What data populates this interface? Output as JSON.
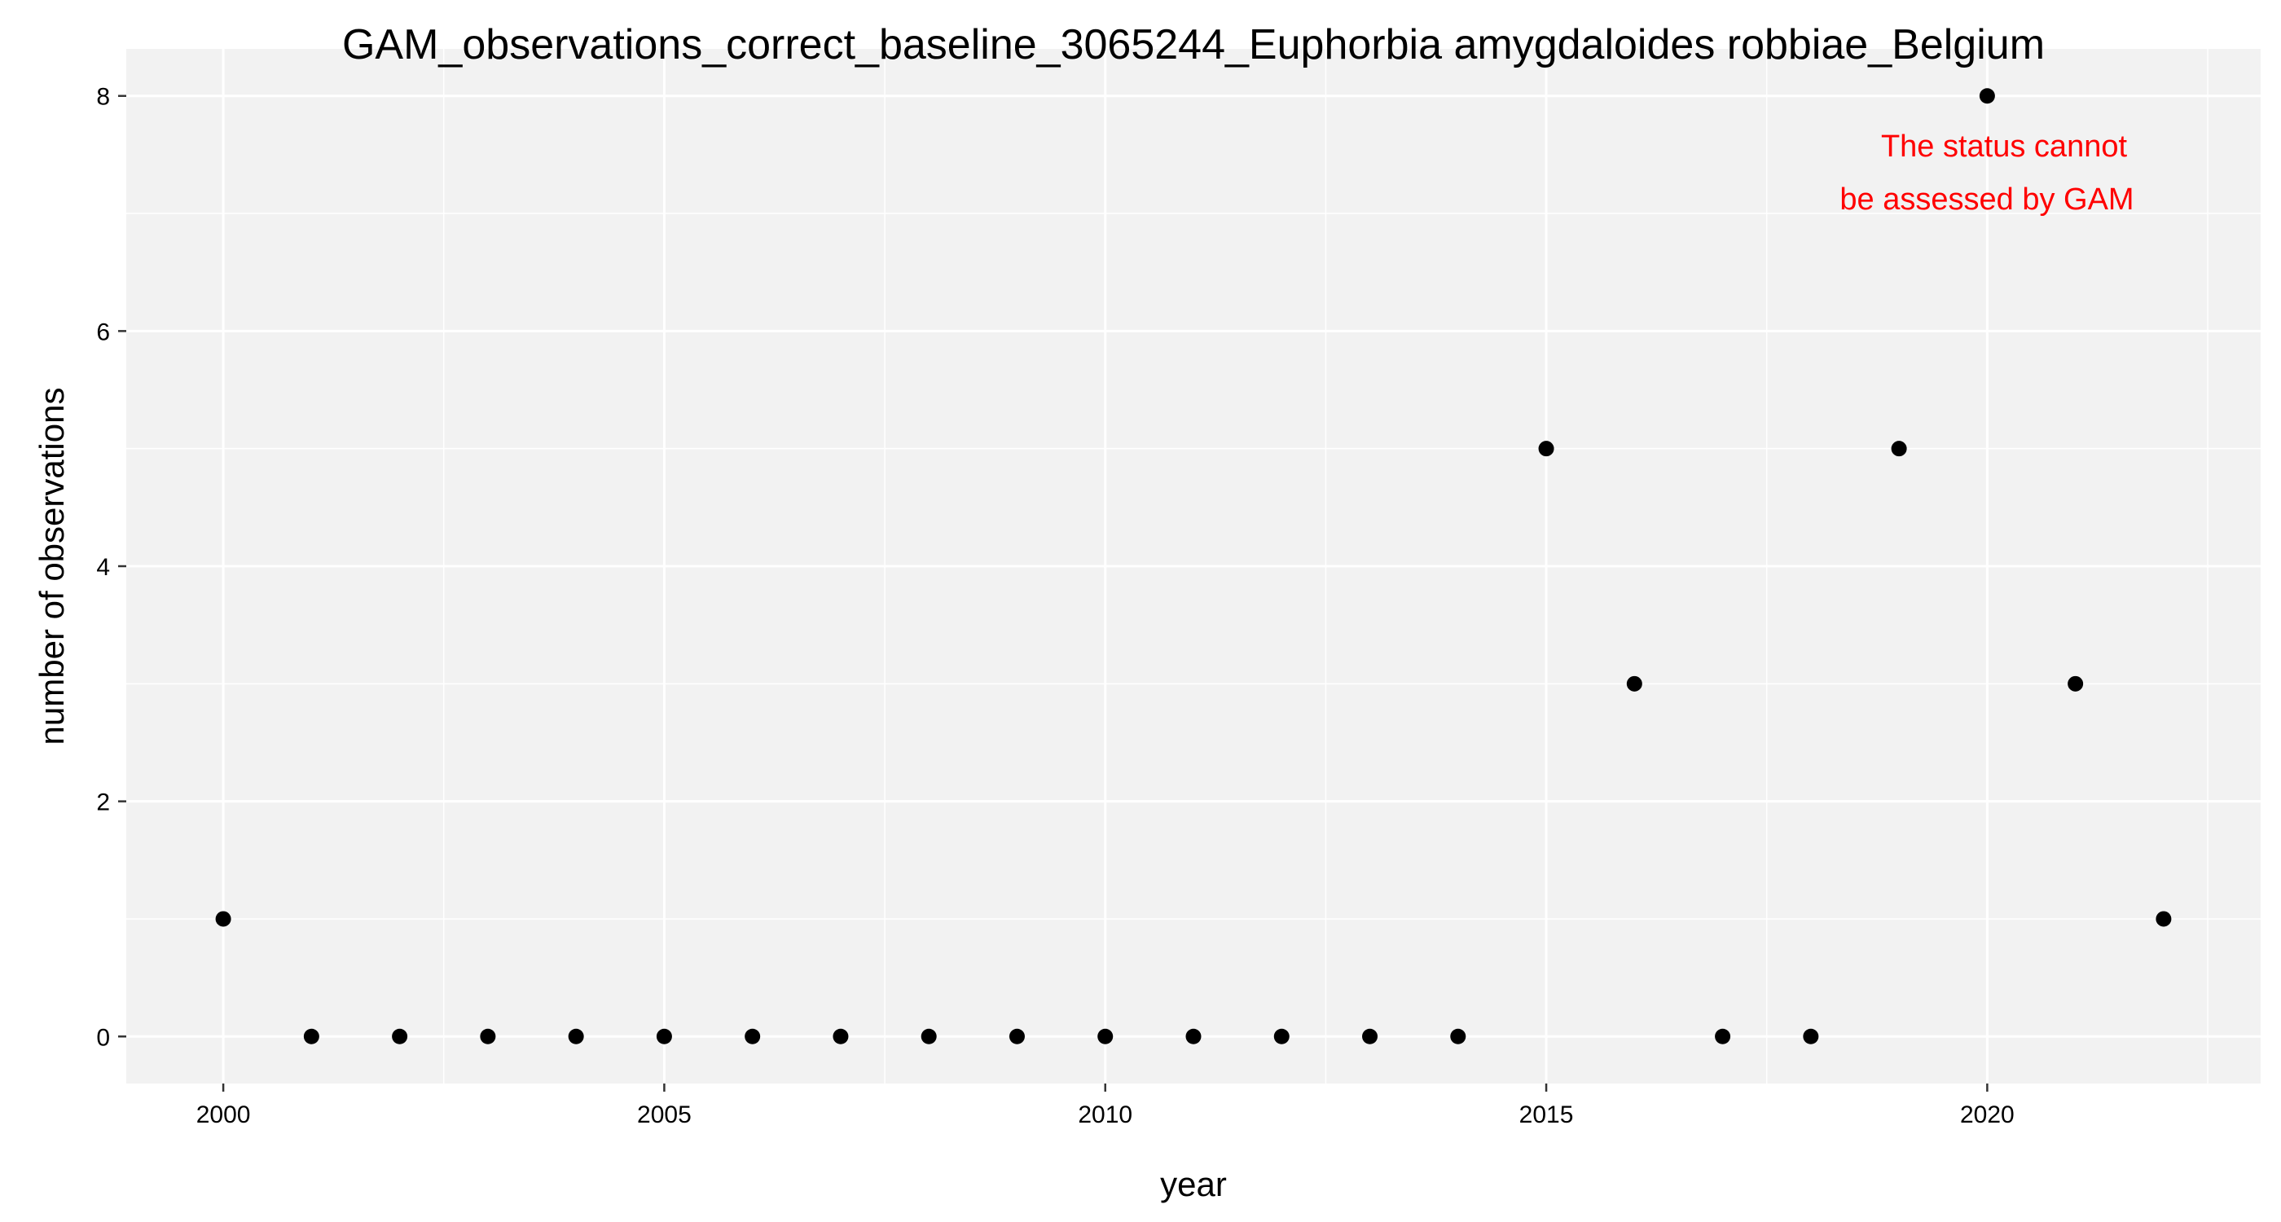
{
  "chart_data": {
    "type": "scatter",
    "title": "GAM_observations_correct_baseline_3065244_Euphorbia amygdaloides robbiae_Belgium",
    "xlabel": "year",
    "ylabel": "number of observations",
    "x": [
      2000,
      2001,
      2002,
      2003,
      2004,
      2005,
      2006,
      2007,
      2008,
      2009,
      2010,
      2011,
      2012,
      2013,
      2014,
      2015,
      2016,
      2017,
      2018,
      2019,
      2020,
      2021,
      2022
    ],
    "y": [
      1,
      0,
      0,
      0,
      0,
      0,
      0,
      0,
      0,
      0,
      0,
      0,
      0,
      0,
      0,
      5,
      3,
      0,
      0,
      5,
      8,
      3,
      1
    ],
    "xlim": [
      1998.9,
      2023.1
    ],
    "ylim": [
      -0.4,
      8.4
    ],
    "x_ticks": [
      2000,
      2005,
      2010,
      2015,
      2020
    ],
    "y_ticks": [
      0,
      2,
      4,
      6,
      8
    ],
    "grid": true,
    "legend": "none",
    "annotation": {
      "lines": [
        "The status cannot",
        "be assessed by GAM"
      ],
      "color": "#ff0000"
    },
    "colors": {
      "panel_background": "#f2f2f2",
      "grid": "#ffffff",
      "point": "#000000"
    }
  }
}
